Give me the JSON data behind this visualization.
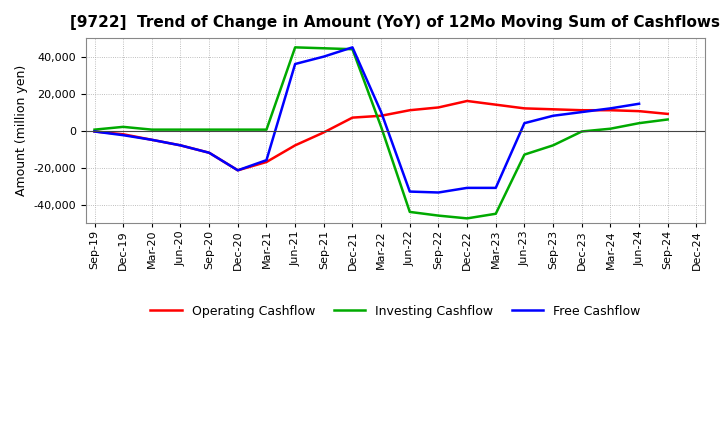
{
  "title": "[9722]  Trend of Change in Amount (YoY) of 12Mo Moving Sum of Cashflows",
  "ylabel": "Amount (million yen)",
  "x_labels": [
    "Sep-19",
    "Dec-19",
    "Mar-20",
    "Jun-20",
    "Sep-20",
    "Dec-20",
    "Mar-21",
    "Jun-21",
    "Sep-21",
    "Dec-21",
    "Mar-22",
    "Jun-22",
    "Sep-22",
    "Dec-22",
    "Mar-23",
    "Jun-23",
    "Sep-23",
    "Dec-23",
    "Mar-24",
    "Jun-24",
    "Sep-24",
    "Dec-24"
  ],
  "operating": [
    -500,
    -2000,
    -5000,
    -8000,
    -12000,
    -21500,
    -17000,
    -8000,
    -1000,
    7000,
    8000,
    11000,
    12500,
    16000,
    14000,
    12000,
    11500,
    11000,
    11000,
    10500,
    9000,
    null
  ],
  "investing": [
    500,
    2000,
    500,
    500,
    500,
    500,
    500,
    45000,
    44500,
    44000,
    2000,
    -44000,
    -46000,
    -47500,
    -45000,
    -13000,
    -8000,
    -500,
    1000,
    4000,
    6000,
    null
  ],
  "free": [
    -500,
    -2500,
    -5000,
    -8000,
    -12000,
    -21500,
    -16000,
    36000,
    40000,
    45000,
    10000,
    -33000,
    -33500,
    -31000,
    -31000,
    4000,
    8000,
    10000,
    12000,
    14500,
    null,
    null
  ],
  "legend": [
    "Operating Cashflow",
    "Investing Cashflow",
    "Free Cashflow"
  ],
  "colors": [
    "#ff0000",
    "#00aa00",
    "#0000ff"
  ],
  "ylim": [
    -50000,
    50000
  ],
  "yticks": [
    -40000,
    -20000,
    0,
    20000,
    40000
  ],
  "background": "#ffffff",
  "grid_color": "#aaaaaa",
  "title_fontsize": 11,
  "ylabel_fontsize": 9,
  "tick_fontsize": 8,
  "legend_fontsize": 9,
  "linewidth": 1.8
}
